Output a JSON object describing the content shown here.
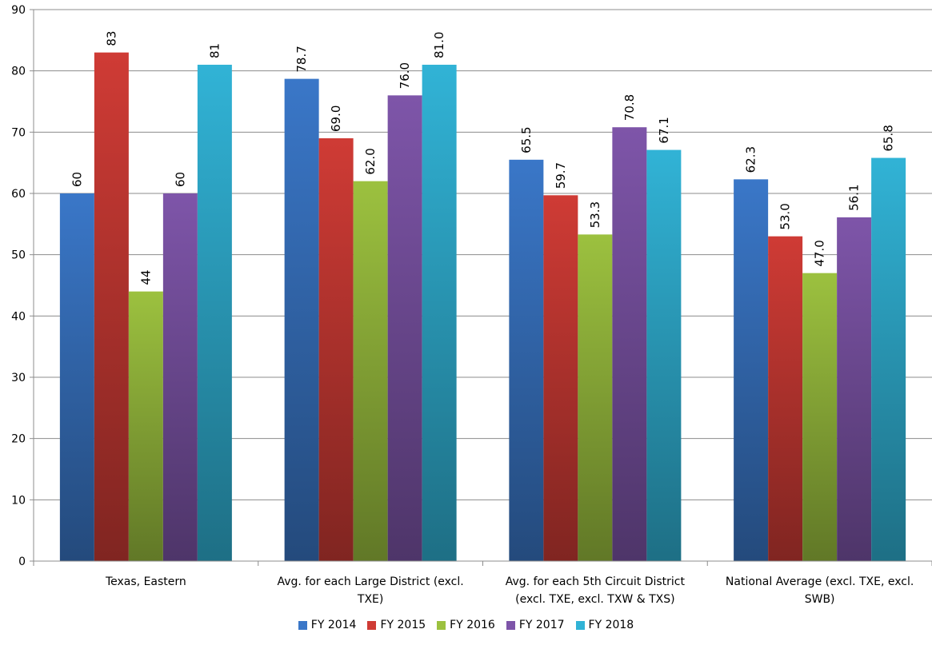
{
  "chart_data": {
    "type": "bar",
    "categories": [
      [
        "Texas, Eastern"
      ],
      [
        "Avg. for each Large District (excl.",
        "TXE)"
      ],
      [
        "Avg. for each 5th Circuit District",
        "(excl. TXE, excl. TXW & TXS)"
      ],
      [
        "National Average (excl. TXE, excl.",
        "SWB)"
      ]
    ],
    "series": [
      {
        "name": "FY 2014",
        "color": "#3a77c8",
        "values": [
          60,
          78.7,
          65.5,
          62.3
        ],
        "labels": [
          "60",
          "78.7",
          "65.5",
          "62.3"
        ]
      },
      {
        "name": "FY 2015",
        "color": "#cf3b35",
        "values": [
          83,
          69.0,
          59.7,
          53.0
        ],
        "labels": [
          "83",
          "69.0",
          "59.7",
          "53.0"
        ]
      },
      {
        "name": "FY 2016",
        "color": "#9cc13f",
        "values": [
          44,
          62.0,
          53.3,
          47.0
        ],
        "labels": [
          "44",
          "62.0",
          "53.3",
          "47.0"
        ]
      },
      {
        "name": "FY 2017",
        "color": "#7e55a9",
        "values": [
          60,
          76.0,
          70.8,
          56.1
        ],
        "labels": [
          "60",
          "76.0",
          "70.8",
          "56.1"
        ]
      },
      {
        "name": "FY 2018",
        "color": "#31b3d6",
        "values": [
          81,
          81.0,
          67.1,
          65.8
        ],
        "labels": [
          "81",
          "81.0",
          "67.1",
          "65.8"
        ]
      }
    ],
    "ylim": [
      0,
      90
    ],
    "yticks": [
      0,
      10,
      20,
      30,
      40,
      50,
      60,
      70,
      80,
      90
    ],
    "grid": true,
    "legend": "bottom",
    "title": "",
    "xlabel": "",
    "ylabel": ""
  }
}
